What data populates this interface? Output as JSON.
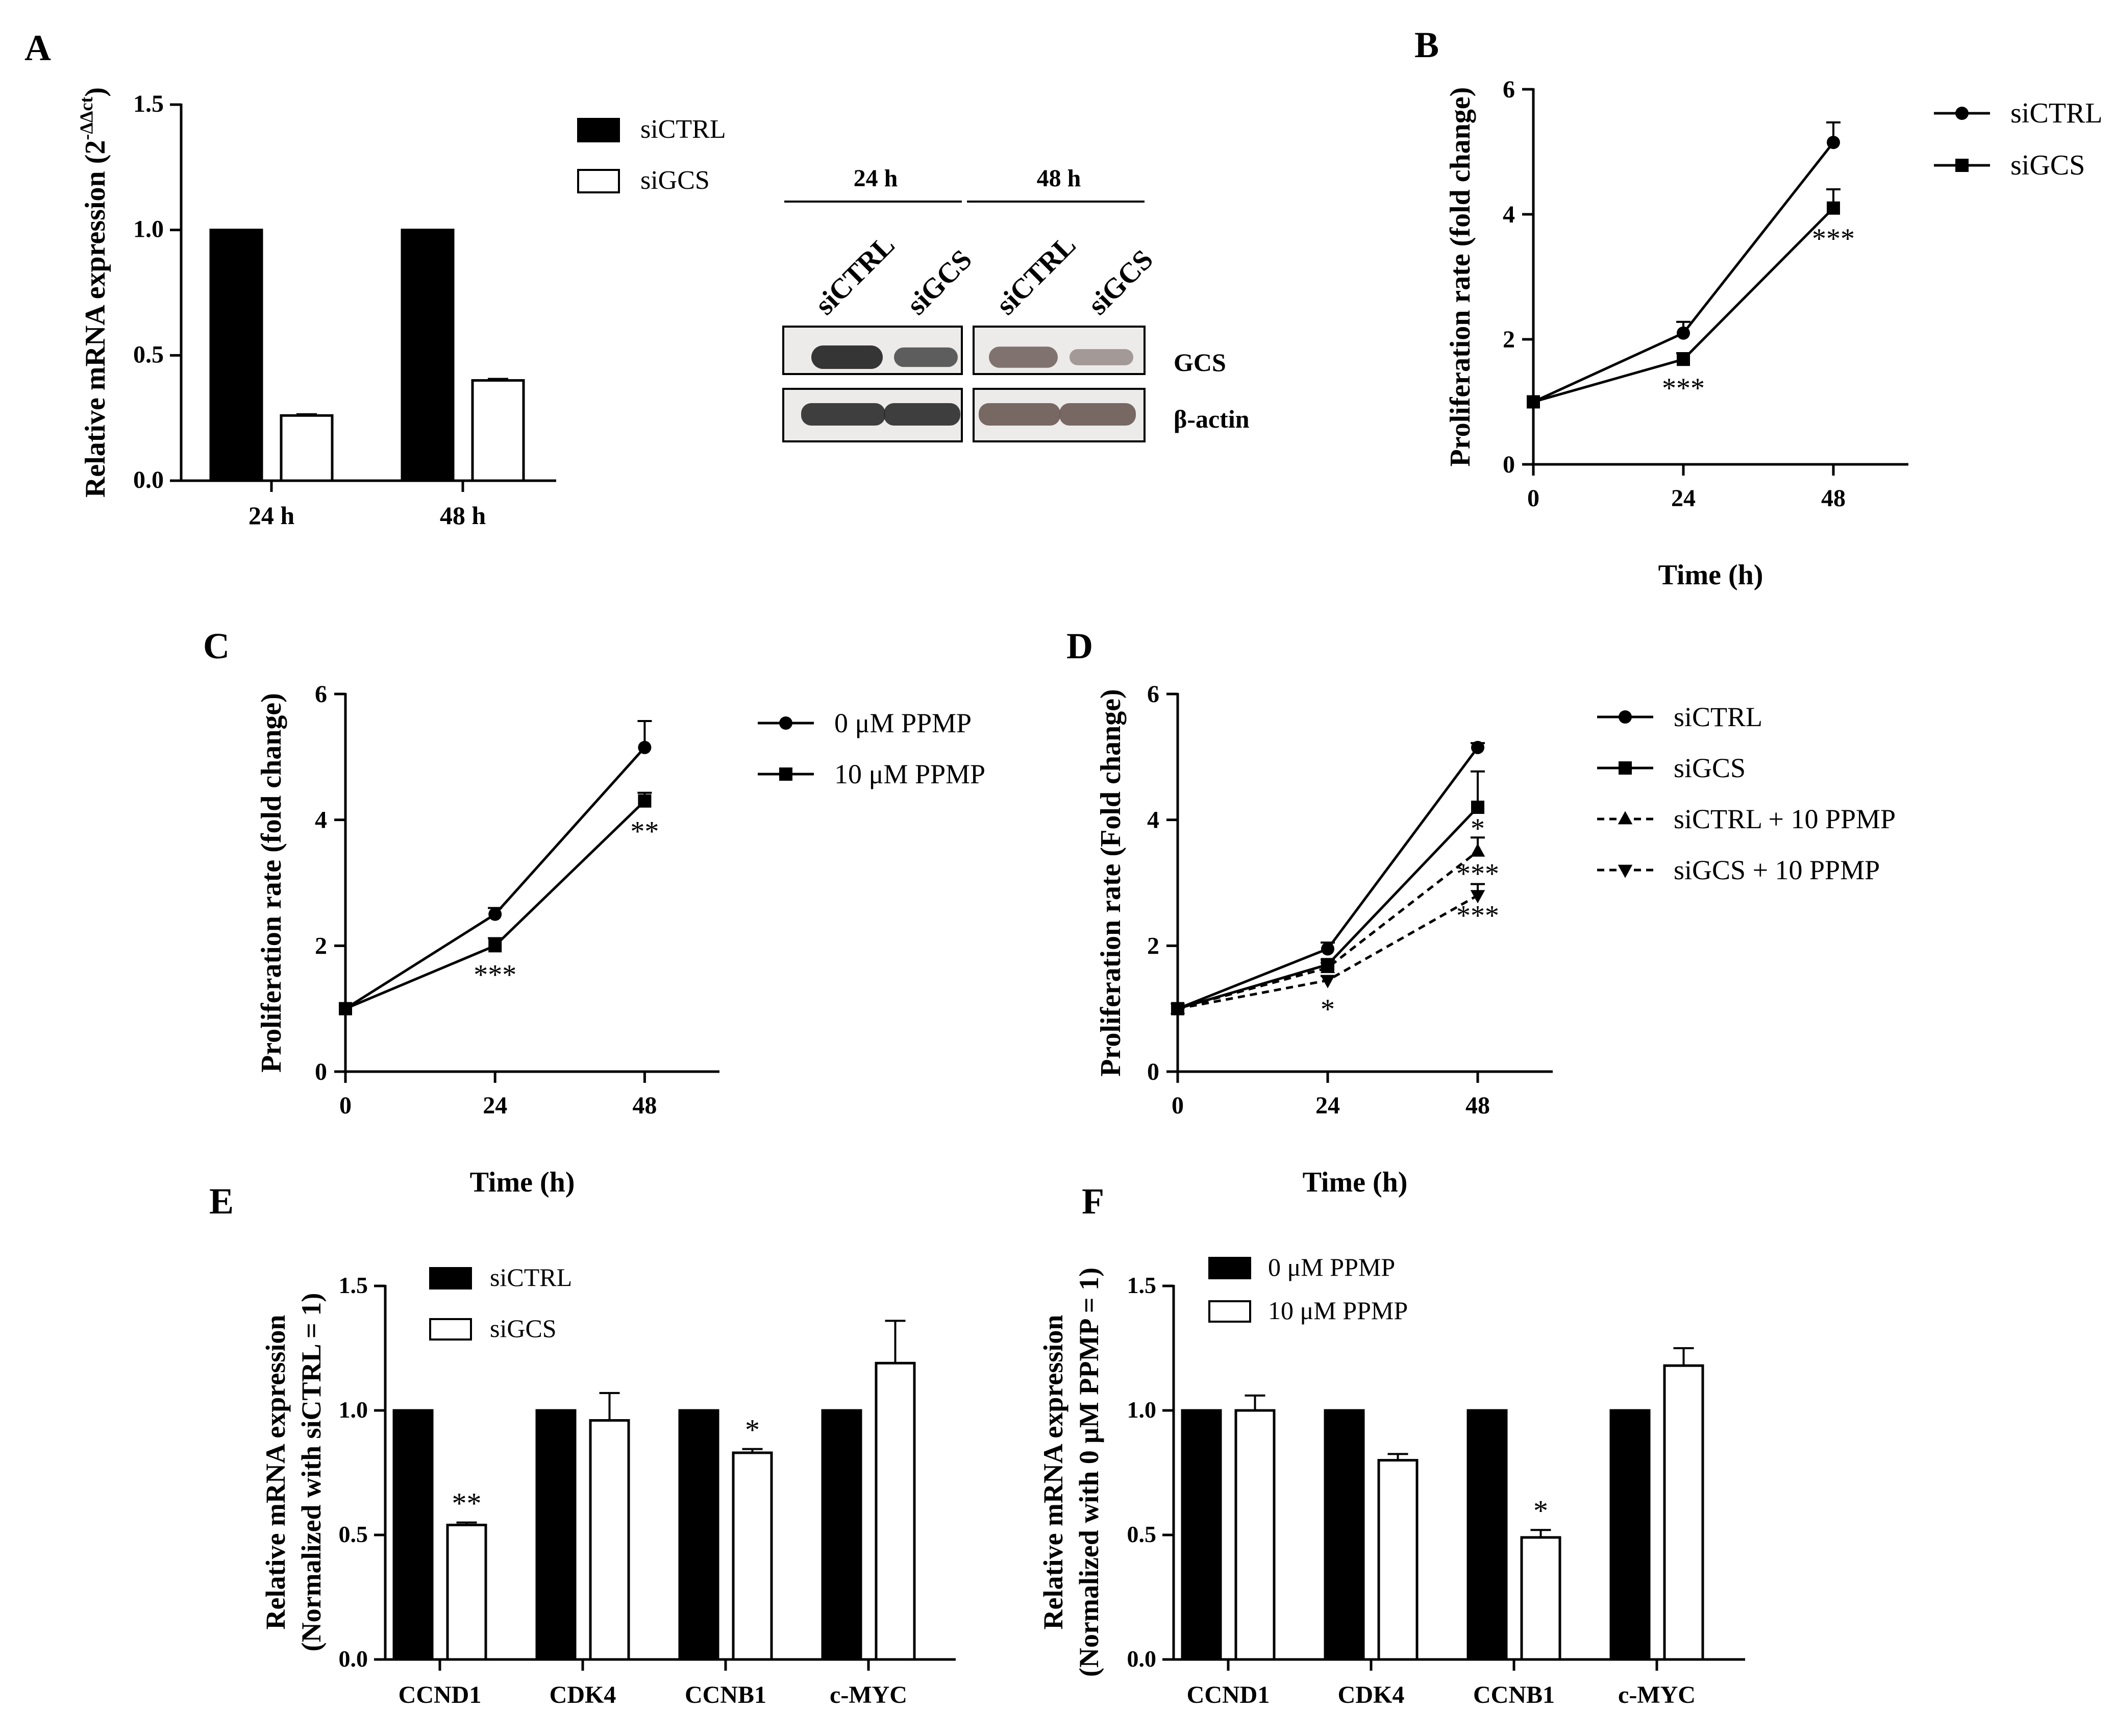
{
  "colors": {
    "ink": "#000000",
    "paper": "#ffffff",
    "band_dark": "#2b2b2b",
    "band_mid": "#6a5a55",
    "blot_bg": "#ecebea"
  },
  "chart_data": [
    {
      "panel": "A",
      "type": "bar",
      "categories": [
        "24 h",
        "48 h"
      ],
      "series": [
        {
          "name": "siCTRL",
          "fill": "black",
          "values": [
            1.0,
            1.0
          ],
          "errors": [
            0,
            0
          ],
          "sig": [
            "",
            ""
          ]
        },
        {
          "name": "siGCS",
          "fill": "white",
          "values": [
            0.26,
            0.4
          ],
          "errors": [
            0.005,
            0.006
          ],
          "sig": [
            "",
            ""
          ]
        }
      ],
      "ylabel": "Relative mRNA expression (2",
      "ylabel_sup": "-ΔΔct",
      "ylabel_tail": ")",
      "xlabel": "",
      "ylim": [
        0,
        1.5
      ],
      "yticks": [
        "0.0",
        "0.5",
        "1.0",
        "1.5"
      ],
      "legend": [
        "siCTRL",
        "siGCS"
      ]
    },
    {
      "panel": "A",
      "type": "western-blot",
      "timepoints": [
        "24 h",
        "48 h"
      ],
      "lanes": [
        "siCTRL",
        "siGCS",
        "siCTRL",
        "siGCS"
      ],
      "rows": [
        {
          "label": "GCS",
          "intensity": [
            1.0,
            0.65,
            0.8,
            0.35
          ]
        },
        {
          "label": "β-actin",
          "intensity": [
            1.0,
            1.0,
            1.0,
            1.0
          ]
        }
      ]
    },
    {
      "panel": "B",
      "type": "line",
      "x": [
        0,
        24,
        48
      ],
      "xticks": [
        "0",
        "24",
        "48"
      ],
      "xlim": [
        0,
        60
      ],
      "ylim": [
        0,
        6
      ],
      "yticks": [
        "0",
        "2",
        "4",
        "6"
      ],
      "xlabel": "Time (h)",
      "ylabel": "Proliferation rate (fold change)",
      "series": [
        {
          "name": "siCTRL",
          "marker": "circle",
          "dash": false,
          "y": [
            1,
            2.1,
            5.15
          ],
          "err": [
            0,
            0.18,
            0.32
          ],
          "sig": [
            "",
            "",
            ""
          ]
        },
        {
          "name": "siGCS",
          "marker": "square",
          "dash": false,
          "y": [
            1,
            1.68,
            4.1
          ],
          "err": [
            0,
            0.1,
            0.3
          ],
          "sig": [
            "",
            "***",
            "***"
          ]
        }
      ]
    },
    {
      "panel": "C",
      "type": "line",
      "x": [
        0,
        24,
        48
      ],
      "xticks": [
        "0",
        "24",
        "48"
      ],
      "xlim": [
        0,
        60
      ],
      "ylim": [
        0,
        6
      ],
      "yticks": [
        "0",
        "2",
        "4",
        "6"
      ],
      "xlabel": "Time (h)",
      "ylabel": "Proliferation rate (fold change)",
      "series": [
        {
          "name": "0 μM PPMP",
          "marker": "circle",
          "dash": false,
          "y": [
            1,
            2.5,
            5.15
          ],
          "err": [
            0,
            0.1,
            0.42
          ],
          "sig": [
            "",
            "",
            ""
          ]
        },
        {
          "name": "10 μM PPMP",
          "marker": "square",
          "dash": false,
          "y": [
            1,
            2.0,
            4.3
          ],
          "err": [
            0,
            0.12,
            0.13
          ],
          "sig": [
            "",
            "***",
            "**"
          ]
        }
      ]
    },
    {
      "panel": "D",
      "type": "line",
      "x": [
        0,
        24,
        48
      ],
      "xticks": [
        "0",
        "24",
        "48"
      ],
      "xlim": [
        0,
        60
      ],
      "ylim": [
        0,
        6
      ],
      "yticks": [
        "0",
        "2",
        "4",
        "6"
      ],
      "xlabel": "Time (h)",
      "ylabel": "Proliferation rate (Fold change)",
      "series": [
        {
          "name": "siCTRL",
          "marker": "circle",
          "dash": false,
          "y": [
            1,
            1.95,
            5.15
          ],
          "err": [
            0,
            0.1,
            0.07
          ],
          "sig": [
            "",
            "",
            ""
          ]
        },
        {
          "name": "siGCS",
          "marker": "square",
          "dash": false,
          "y": [
            1,
            1.7,
            4.2
          ],
          "err": [
            0,
            0.08,
            0.57
          ],
          "sig": [
            "",
            "",
            "*"
          ]
        },
        {
          "name": "siCTRL + 10 PPMP",
          "marker": "triangle-up",
          "dash": true,
          "y": [
            1,
            1.65,
            3.5
          ],
          "err": [
            0,
            0.08,
            0.22
          ],
          "sig": [
            "",
            "",
            "***"
          ]
        },
        {
          "name": "siGCS + 10 PPMP",
          "marker": "triangle-down",
          "dash": true,
          "y": [
            1,
            1.45,
            2.8
          ],
          "err": [
            0,
            0.07,
            0.18
          ],
          "sig": [
            "",
            "*",
            "***"
          ]
        }
      ]
    },
    {
      "panel": "E",
      "type": "bar",
      "categories": [
        "CCND1",
        "CDK4",
        "CCNB1",
        "c-MYC"
      ],
      "series": [
        {
          "name": "siCTRL",
          "fill": "black",
          "values": [
            1,
            1,
            1,
            1
          ],
          "errors": [
            0,
            0,
            0,
            0
          ],
          "sig": [
            "",
            "",
            "",
            ""
          ]
        },
        {
          "name": "siGCS",
          "fill": "white",
          "values": [
            0.54,
            0.96,
            0.83,
            1.19
          ],
          "errors": [
            0.01,
            0.11,
            0.015,
            0.17
          ],
          "sig": [
            "**",
            "",
            "*",
            ""
          ]
        }
      ],
      "ylabel": "Relative mRNA expression",
      "ylabel2": "(Normalized with siCTRL = 1)",
      "xlabel": "",
      "ylim": [
        0,
        1.5
      ],
      "yticks": [
        "0.0",
        "0.5",
        "1.0",
        "1.5"
      ],
      "legend": [
        "siCTRL",
        "siGCS"
      ]
    },
    {
      "panel": "F",
      "type": "bar",
      "categories": [
        "CCND1",
        "CDK4",
        "CCNB1",
        "c-MYC"
      ],
      "series": [
        {
          "name": "0 μM PPMP",
          "fill": "black",
          "values": [
            1,
            1,
            1,
            1
          ],
          "errors": [
            0,
            0,
            0,
            0
          ],
          "sig": [
            "",
            "",
            "",
            ""
          ]
        },
        {
          "name": "10 μM PPMP",
          "fill": "white",
          "values": [
            1.0,
            0.8,
            0.49,
            1.18
          ],
          "errors": [
            0.06,
            0.025,
            0.03,
            0.07
          ],
          "sig": [
            "",
            "",
            "*",
            ""
          ]
        }
      ],
      "ylabel": "Relative mRNA expression",
      "ylabel2": "(Normalized with 0 μM PPMP = 1)",
      "xlabel": "",
      "ylim": [
        0,
        1.5
      ],
      "yticks": [
        "0.0",
        "0.5",
        "1.0",
        "1.5"
      ],
      "legend": [
        "0 μM PPMP",
        "10 μM PPMP"
      ]
    }
  ]
}
